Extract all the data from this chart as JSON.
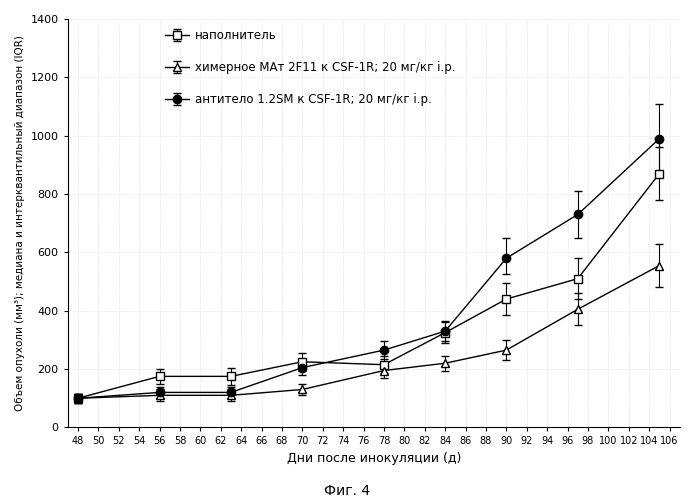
{
  "xlabel": "Дни после инокуляции (д)",
  "ylabel": "Объем опухоли (мм³); медиана и интерквантильный диапазон (IQR)",
  "caption": "Фиг. 4",
  "xlim": [
    47,
    107
  ],
  "ylim": [
    0,
    1400
  ],
  "xticks": [
    48,
    50,
    52,
    54,
    56,
    58,
    60,
    62,
    64,
    66,
    68,
    70,
    72,
    74,
    76,
    78,
    80,
    82,
    84,
    86,
    88,
    90,
    92,
    94,
    96,
    98,
    100,
    102,
    104,
    106
  ],
  "yticks": [
    0,
    200,
    400,
    600,
    800,
    1000,
    1200,
    1400
  ],
  "series": [
    {
      "label": "наполнитель",
      "marker": "s",
      "marker_fill": "white",
      "marker_edge": "black",
      "line_color": "black",
      "x": [
        48,
        56,
        63,
        70,
        78,
        84,
        90,
        97,
        105
      ],
      "y": [
        100,
        175,
        175,
        225,
        215,
        325,
        440,
        510,
        870
      ],
      "yerr_low": [
        15,
        25,
        30,
        30,
        30,
        35,
        55,
        70,
        90
      ],
      "yerr_high": [
        15,
        25,
        30,
        30,
        30,
        35,
        55,
        70,
        90
      ]
    },
    {
      "label": "химерное МАт 2F11 к CSF-1R; 20 мг/кг i.p.",
      "marker": "^",
      "marker_fill": "white",
      "marker_edge": "black",
      "line_color": "black",
      "x": [
        48,
        56,
        63,
        70,
        78,
        84,
        90,
        97,
        105
      ],
      "y": [
        100,
        110,
        110,
        130,
        195,
        220,
        265,
        405,
        555
      ],
      "yerr_low": [
        15,
        20,
        20,
        20,
        25,
        25,
        35,
        55,
        75
      ],
      "yerr_high": [
        15,
        20,
        20,
        20,
        25,
        25,
        35,
        55,
        75
      ]
    },
    {
      "label": "антитело 1.2SM к CSF-1R; 20 мг/кг i.p.",
      "marker": "o",
      "marker_fill": "black",
      "marker_edge": "black",
      "line_color": "black",
      "x": [
        48,
        56,
        63,
        70,
        78,
        84,
        90,
        97,
        105
      ],
      "y": [
        100,
        120,
        120,
        205,
        265,
        330,
        580,
        730,
        990
      ],
      "yerr_low": [
        15,
        20,
        20,
        25,
        30,
        35,
        55,
        80,
        120
      ],
      "yerr_high": [
        15,
        20,
        20,
        25,
        30,
        35,
        70,
        80,
        120
      ]
    }
  ],
  "background_color": "#ffffff",
  "grid_color": "#bbbbbb"
}
